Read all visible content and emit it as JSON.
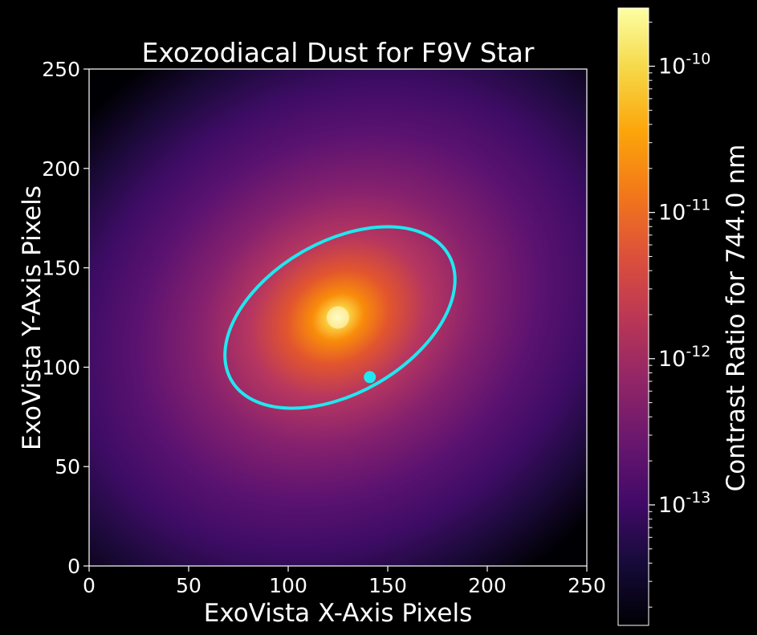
{
  "chart_data": {
    "type": "heatmap",
    "title": "Exozodiacal Dust for F9V Star",
    "xlabel": "ExoVista X-Axis Pixels",
    "ylabel": "ExoVista Y-Axis Pixels",
    "xlim": [
      0,
      250
    ],
    "ylim": [
      0,
      250
    ],
    "xticks": [
      0,
      50,
      100,
      150,
      200,
      250
    ],
    "yticks": [
      0,
      50,
      100,
      150,
      200,
      250
    ],
    "colormap": "inferno",
    "colorbar": {
      "label": "Contrast Ratio for 744.0 nm",
      "scale": "log",
      "range": [
        1.5e-14,
        2.5e-10
      ],
      "major_ticks": [
        {
          "exp": -10,
          "label": "10^-10"
        },
        {
          "exp": -11,
          "label": "10^-11"
        },
        {
          "exp": -12,
          "label": "10^-12"
        },
        {
          "exp": -13,
          "label": "10^-13"
        }
      ]
    },
    "dust_peak": {
      "x": 125,
      "y": 125
    },
    "orbit": {
      "color": "#1fe8f0",
      "center": [
        126,
        125
      ],
      "semi_major": 63,
      "semi_minor": 38,
      "angle_deg": 30
    },
    "planet": {
      "x": 141,
      "y": 95,
      "color": "#1fe8f0"
    }
  }
}
